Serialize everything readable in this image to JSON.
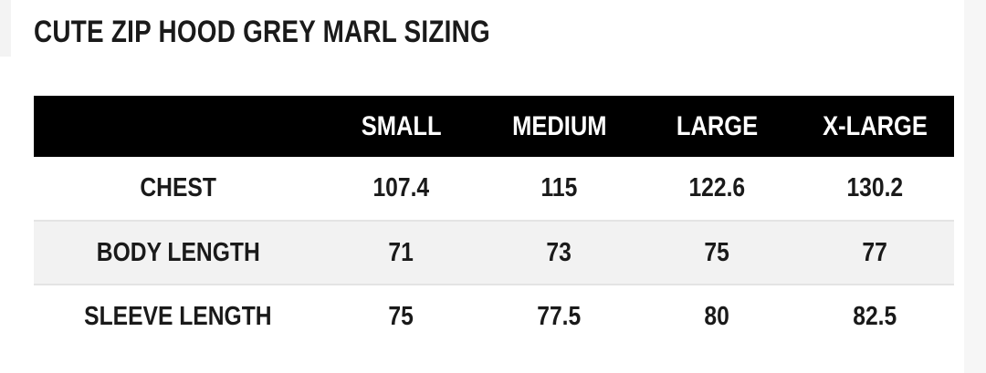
{
  "header": {
    "title": "CUTE ZIP HOOD GREY MARL SIZING"
  },
  "table": {
    "columns": [
      "SMALL",
      "MEDIUM",
      "LARGE",
      "X-LARGE"
    ],
    "rows": [
      [
        "CHEST",
        "107.4",
        "115",
        "122.6",
        "130.2"
      ],
      [
        "BODY LENGTH",
        "71",
        "73",
        "75",
        "77"
      ],
      [
        "SLEEVE LENGTH",
        "75",
        "77.5",
        "80",
        "82.5"
      ]
    ]
  }
}
